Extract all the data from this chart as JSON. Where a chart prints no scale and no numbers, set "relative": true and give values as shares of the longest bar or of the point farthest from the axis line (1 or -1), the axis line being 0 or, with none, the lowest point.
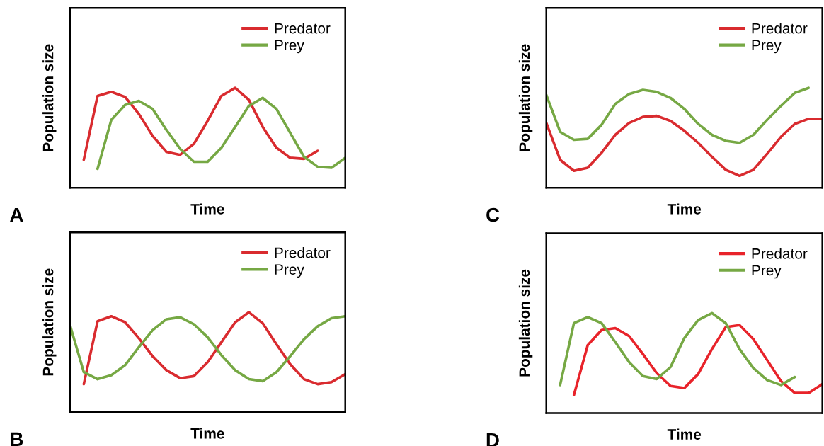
{
  "chart_data": [
    {
      "type": "line",
      "xlabel": "Time",
      "ylabel": "Population size",
      "annotations": [
        "A"
      ],
      "relative": true,
      "tick_labels": false,
      "legend": "top right",
      "categories": [
        null,
        null,
        null,
        null,
        null,
        null,
        null,
        null,
        null,
        null,
        null,
        null,
        null,
        null,
        null,
        null,
        null,
        null,
        null,
        null,
        null
      ],
      "series": [
        {
          "name": "Predator",
          "color": "#d92b2f",
          "values": [
            null,
            0.28,
            0.92,
            0.96,
            0.91,
            0.74,
            0.52,
            0.36,
            0.33,
            0.44,
            0.67,
            0.92,
            1.0,
            0.88,
            0.61,
            0.4,
            0.3,
            0.29,
            0.37,
            null,
            null
          ]
        },
        {
          "name": "Prey",
          "color": "#76a844",
          "values": [
            null,
            null,
            0.19,
            0.68,
            0.83,
            0.87,
            0.79,
            0.58,
            0.39,
            0.26,
            0.26,
            0.4,
            0.61,
            0.82,
            0.9,
            0.79,
            0.55,
            0.31,
            0.21,
            0.2,
            0.3
          ]
        }
      ]
    },
    {
      "type": "line",
      "xlabel": "Time",
      "ylabel": "Population size",
      "annotations": [
        "C"
      ],
      "relative": true,
      "tick_labels": false,
      "legend": "top right",
      "categories": [
        null,
        null,
        null,
        null,
        null,
        null,
        null,
        null,
        null,
        null,
        null,
        null,
        null,
        null,
        null,
        null,
        null,
        null,
        null,
        null,
        null
      ],
      "series": [
        {
          "name": "Predator",
          "color": "#d92b2f",
          "values": [
            0.65,
            0.28,
            0.17,
            0.2,
            0.35,
            0.53,
            0.65,
            0.71,
            0.72,
            0.67,
            0.57,
            0.45,
            0.31,
            0.18,
            0.12,
            0.18,
            0.34,
            0.51,
            0.64,
            0.69,
            0.69
          ]
        },
        {
          "name": "Prey",
          "color": "#76a844",
          "values": [
            0.93,
            0.56,
            0.48,
            0.49,
            0.63,
            0.84,
            0.94,
            0.98,
            0.96,
            0.9,
            0.79,
            0.64,
            0.53,
            0.47,
            0.45,
            0.53,
            0.68,
            0.82,
            0.95,
            1.0,
            null
          ]
        }
      ]
    },
    {
      "type": "line",
      "xlabel": "Time",
      "ylabel": "Population size",
      "annotations": [
        "B"
      ],
      "relative": true,
      "tick_labels": false,
      "legend": "top right",
      "categories": [
        null,
        null,
        null,
        null,
        null,
        null,
        null,
        null,
        null,
        null,
        null,
        null,
        null,
        null,
        null,
        null,
        null,
        null,
        null,
        null,
        null
      ],
      "series": [
        {
          "name": "Predator",
          "color": "#d92b2f",
          "values": [
            null,
            0.28,
            0.91,
            0.96,
            0.9,
            0.74,
            0.56,
            0.42,
            0.34,
            0.36,
            0.5,
            0.7,
            0.9,
            1.0,
            0.89,
            0.68,
            0.48,
            0.33,
            0.28,
            0.3,
            0.38
          ]
        },
        {
          "name": "Prey",
          "color": "#76a844",
          "values": [
            0.87,
            0.4,
            0.33,
            0.37,
            0.47,
            0.65,
            0.82,
            0.93,
            0.95,
            0.88,
            0.75,
            0.57,
            0.42,
            0.33,
            0.31,
            0.4,
            0.56,
            0.73,
            0.86,
            0.94,
            0.96
          ]
        }
      ]
    },
    {
      "type": "line",
      "xlabel": "Time",
      "ylabel": "Population size",
      "annotations": [
        "D"
      ],
      "relative": true,
      "tick_labels": false,
      "legend": "top right",
      "categories": [
        null,
        null,
        null,
        null,
        null,
        null,
        null,
        null,
        null,
        null,
        null,
        null,
        null,
        null,
        null,
        null,
        null,
        null,
        null,
        null,
        null
      ],
      "series": [
        {
          "name": "Predator",
          "color": "#e8232a",
          "values": [
            null,
            null,
            0.18,
            0.68,
            0.83,
            0.85,
            0.77,
            0.59,
            0.4,
            0.27,
            0.25,
            0.39,
            0.64,
            0.86,
            0.88,
            0.74,
            0.53,
            0.32,
            0.2,
            0.2,
            0.29
          ]
        },
        {
          "name": "Prey",
          "color": "#76a844",
          "values": [
            null,
            0.28,
            0.9,
            0.96,
            0.9,
            0.71,
            0.51,
            0.37,
            0.34,
            0.46,
            0.75,
            0.93,
            1.0,
            0.9,
            0.64,
            0.45,
            0.33,
            0.28,
            0.36,
            null,
            null
          ]
        }
      ]
    }
  ]
}
